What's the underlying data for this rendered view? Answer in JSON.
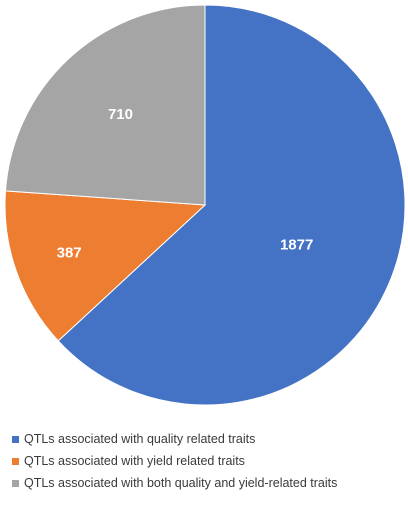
{
  "chart_data": {
    "type": "pie",
    "start_angle_deg": 0,
    "direction": "clockwise",
    "slices": [
      {
        "label": "QTLs associated with quality related traits",
        "value": 1877,
        "value_label": "1877",
        "color": "#4472C4"
      },
      {
        "label": "QTLs associated with yield related traits",
        "value": 387,
        "value_label": "387",
        "color": "#ED7D31"
      },
      {
        "label": "QTLs associated with both quality and yield-related traits",
        "value": 710,
        "value_label": "710",
        "color": "#A5A5A5"
      }
    ],
    "legend_position": "bottom"
  }
}
